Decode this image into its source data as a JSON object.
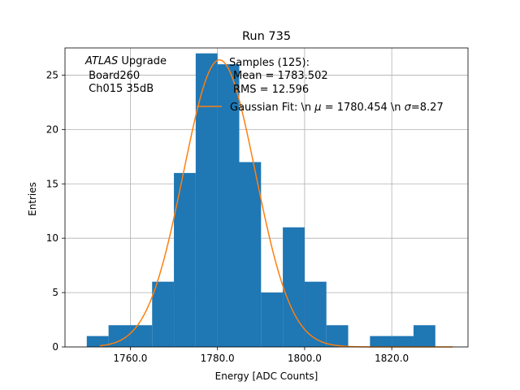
{
  "chart_data": {
    "type": "bar",
    "title": "Run 735",
    "xlabel": "Energy [ADC Counts]",
    "ylabel": "Entries",
    "xlim": [
      1745,
      1837.5
    ],
    "ylim": [
      0,
      27.5
    ],
    "grid": true,
    "x_ticks": [
      1760,
      1780,
      1800,
      1820
    ],
    "x_tick_labels": [
      "1760.0",
      "1780.0",
      "1800.0",
      "1820.0"
    ],
    "y_ticks": [
      0,
      5,
      10,
      15,
      20,
      25
    ],
    "y_tick_labels": [
      "0",
      "5",
      "10",
      "15",
      "20",
      "25"
    ],
    "bin_edges": [
      1750,
      1755,
      1760,
      1765,
      1770,
      1775,
      1780,
      1785,
      1790,
      1795,
      1800,
      1805,
      1810,
      1815,
      1820,
      1825,
      1830
    ],
    "counts": [
      1,
      2,
      2,
      6,
      16,
      27,
      26,
      17,
      5,
      11,
      6,
      2,
      0,
      1,
      1,
      2
    ],
    "hist_color": "#1f77b4",
    "fit": {
      "label_prefix": "Gaussian Fit: \\n ",
      "label_mu": "μ",
      "label_mid": " = 1780.454 \\n ",
      "label_sigma": "σ",
      "label_suffix": "=8.27",
      "mu": 1780.454,
      "sigma": 8.27,
      "amplitude": 26.4,
      "x_range": [
        1753,
        1834
      ],
      "color": "#ff7f0e"
    },
    "annotation": {
      "atlas": "ATLAS",
      "upgrade": " Upgrade",
      "line2": " Board260",
      "line3": " Ch015 35dB"
    },
    "legend": {
      "position": "upper-center",
      "samples": "Samples (125):",
      "mean": "Mean = 1783.502",
      "rms": "RMS = 12.596"
    }
  }
}
